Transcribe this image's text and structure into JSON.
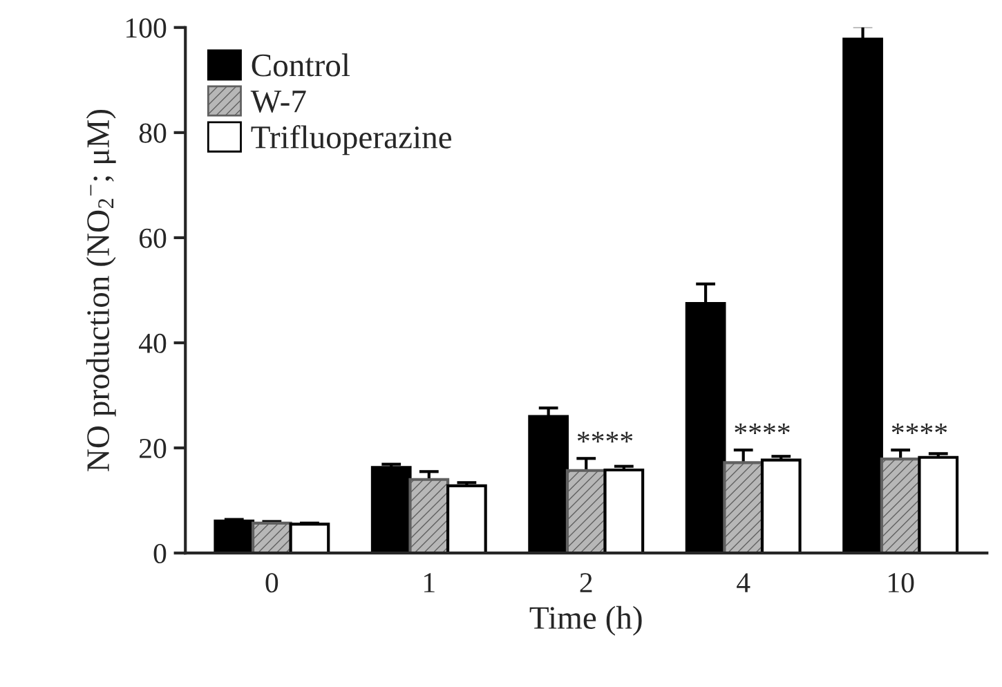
{
  "chart_data": {
    "type": "bar",
    "xlabel": "Time (h)",
    "ylabel": "NO production (NO$_{2}$$^{−}$; μM)",
    "categories": [
      "0",
      "1",
      "2",
      "4",
      "10"
    ],
    "series": [
      {
        "name": "Control",
        "color": "#000000",
        "values": [
          6.1,
          16.3,
          26.0,
          47.5,
          97.8
        ],
        "errors": [
          0.3,
          0.6,
          1.6,
          3.7,
          2.4
        ]
      },
      {
        "name": "W-7",
        "color": "#606060",
        "values": [
          5.7,
          14.0,
          15.7,
          17.2,
          17.9
        ],
        "errors": [
          0.3,
          1.5,
          2.3,
          2.4,
          1.7
        ]
      },
      {
        "name": "Trifluoperazine",
        "color": "#ffffff",
        "values": [
          5.5,
          12.8,
          15.8,
          17.7,
          18.2
        ],
        "errors": [
          0.2,
          0.6,
          0.7,
          0.7,
          0.7
        ]
      }
    ],
    "annotations": [
      "****",
      "****",
      "****"
    ],
    "ylim": [
      0,
      100
    ],
    "yticks": [
      0,
      20,
      40,
      60,
      80,
      100
    ],
    "legend": "top left",
    "grid": false
  }
}
